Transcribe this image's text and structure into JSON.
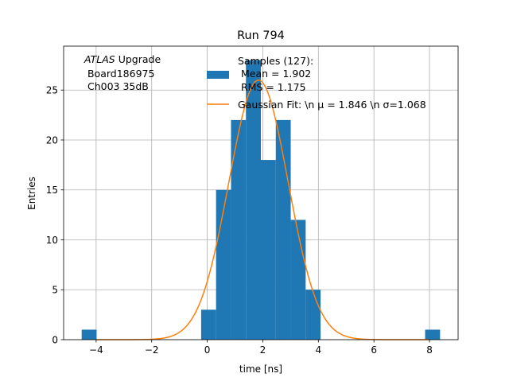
{
  "chart_data": {
    "type": "bar",
    "title": "Run 794",
    "xlabel": "time [ns]",
    "ylabel": "Entries",
    "xlim": [
      -5.17,
      9.03
    ],
    "ylim": [
      0,
      29.4
    ],
    "grid": true,
    "xticks": [
      -4,
      -2,
      0,
      2,
      4,
      6,
      8
    ],
    "xtick_labels": [
      "−4",
      "−2",
      "0",
      "2",
      "4",
      "6",
      "8"
    ],
    "yticks": [
      0,
      5,
      10,
      15,
      20,
      25
    ],
    "ytick_labels": [
      "0",
      "5",
      "10",
      "15",
      "20",
      "25"
    ],
    "histogram": {
      "bin_start": -4.52,
      "bin_width": 0.5375,
      "counts": [
        1,
        0,
        0,
        0,
        0,
        0,
        0,
        0,
        3,
        15,
        22,
        28,
        18,
        22,
        12,
        5,
        0,
        0,
        0,
        0,
        0,
        0,
        0,
        1
      ],
      "color": "#1f77b4"
    },
    "gaussian_fit": {
      "mu": 1.846,
      "sigma": 1.068,
      "amplitude": 26.0,
      "x_range": [
        -4.0,
        8.0
      ],
      "color": "#ff7f0e"
    },
    "annotation": {
      "line1_italic": "ATLAS",
      "line1_rest": " Upgrade",
      "line2": " Board186975",
      "line3": " Ch003 35dB"
    },
    "legend": {
      "placement": "top-right",
      "entries": [
        {
          "lines": [
            "Samples (127):",
            " Mean = 1.902",
            " RMS = 1.175"
          ]
        },
        {
          "label": "Gaussian Fit: \\n μ = 1.846 \\n σ=1.068"
        }
      ]
    }
  }
}
